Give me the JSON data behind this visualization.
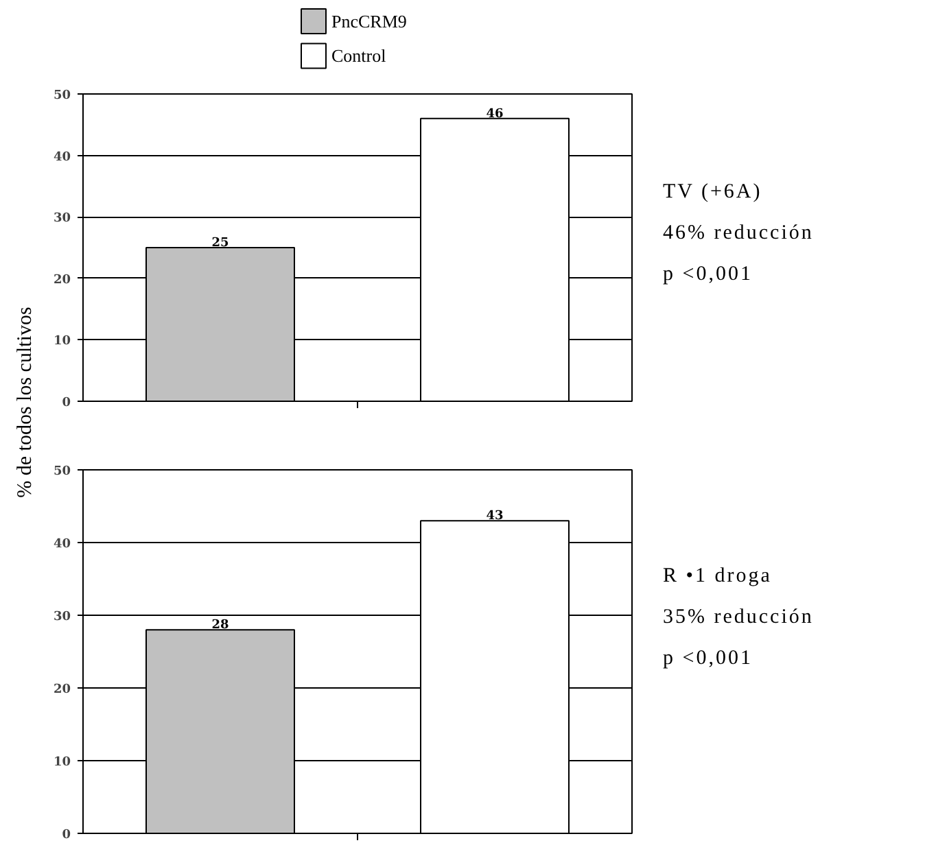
{
  "chart_data": [
    {
      "type": "bar",
      "ylabel": "% de todos los cultivos",
      "categories": [
        null,
        null
      ],
      "series": [
        {
          "name": "PncCRM9",
          "color": "#c0c0c0",
          "values": [
            25,
            null
          ]
        },
        {
          "name": "Control",
          "color": "#ffffff",
          "values": [
            null,
            46
          ]
        }
      ],
      "ylim": [
        0,
        50
      ],
      "yticks": [
        0,
        10,
        20,
        30,
        40,
        50
      ],
      "grid": "y",
      "legend": "top",
      "data_labels": true,
      "annotations": [
        "TV (+6A)",
        "46% reducción",
        "p <0,001"
      ]
    },
    {
      "type": "bar",
      "categories": [
        null,
        null
      ],
      "series": [
        {
          "color": "#c0c0c0",
          "values": [
            28,
            null
          ]
        },
        {
          "color": "#ffffff",
          "values": [
            null,
            43
          ]
        }
      ],
      "ylim": [
        0,
        50
      ],
      "yticks": [
        0,
        10,
        20,
        30,
        40,
        50
      ],
      "grid": "y",
      "data_labels": true,
      "annotations": [
        "R •1 droga",
        "35% reducción",
        "p <0,001"
      ]
    }
  ]
}
